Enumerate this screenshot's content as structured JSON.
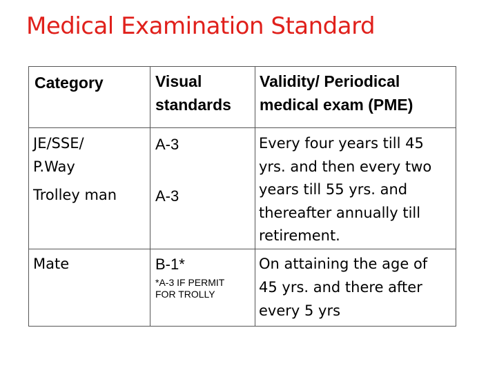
{
  "title": "Medical Examination Standard",
  "table": {
    "headers": {
      "category": "Category",
      "visual_line1": "Visual",
      "visual_line2": "standards",
      "validity_line1": "Validity/ Periodical",
      "validity_line2": "medical exam (PME)"
    },
    "rows": [
      {
        "category_line1": "JE/SSE/",
        "category_line2": "P.Way",
        "visual": "A-3"
      },
      {
        "category": "Trolley man",
        "visual": "A-3"
      },
      {
        "category": "Mate",
        "visual": "B-1*",
        "note_line1": "*A-3 IF PERMIT",
        "note_line2": "FOR TROLLY"
      }
    ],
    "validity_1": [
      "Every four years till 45",
      "yrs. and then every two",
      "years till 55 yrs. and",
      "thereafter annually till",
      "retirement."
    ],
    "validity_2": [
      "On attaining the age of",
      "45 yrs. and there after",
      "every 5 yrs"
    ]
  },
  "colors": {
    "title": "#e0201b",
    "border": "#555555"
  }
}
